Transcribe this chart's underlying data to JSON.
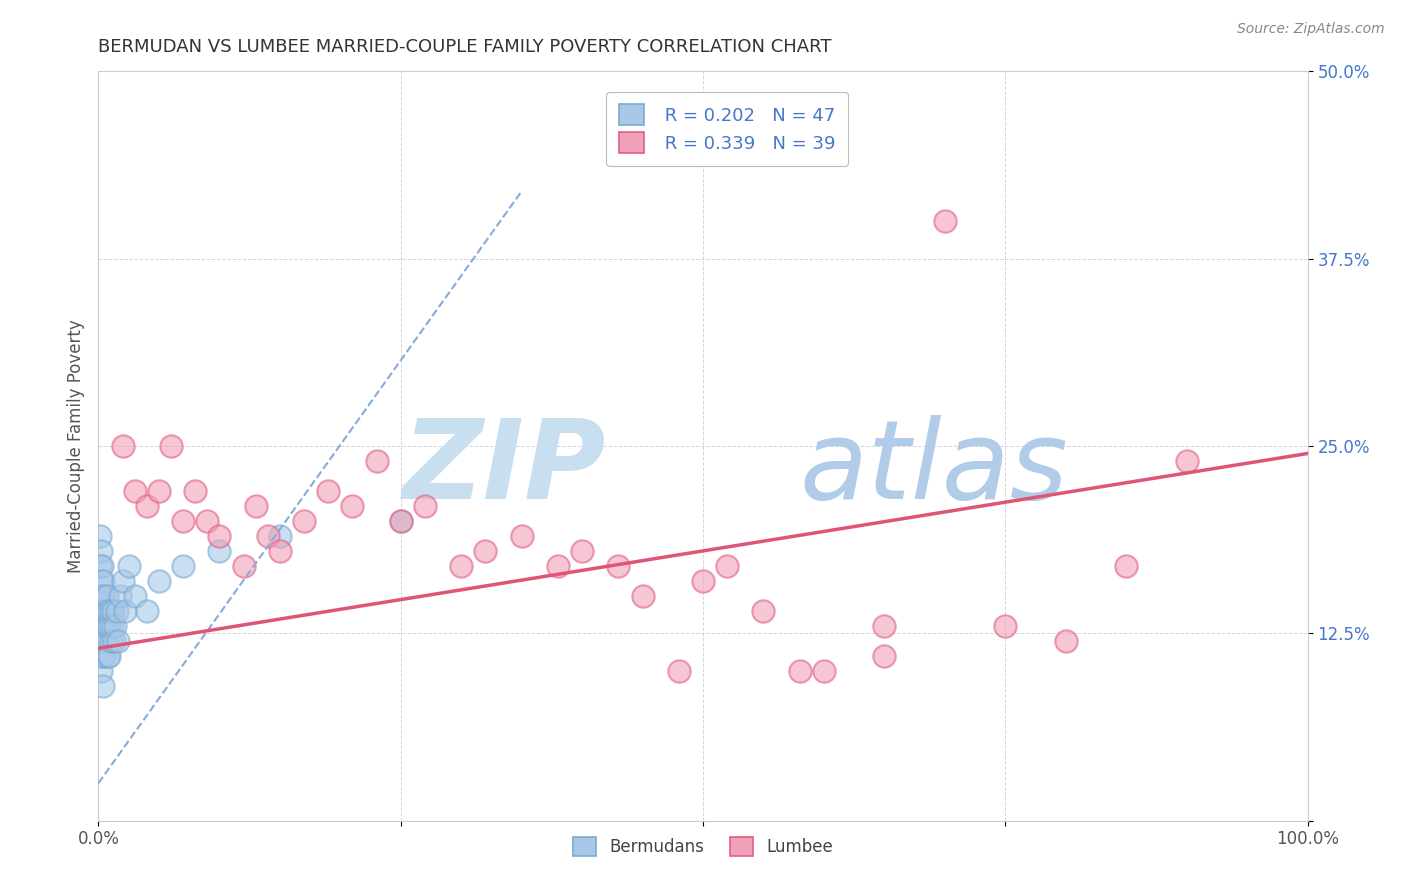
{
  "title": "BERMUDAN VS LUMBEE MARRIED-COUPLE FAMILY POVERTY CORRELATION CHART",
  "source": "Source: ZipAtlas.com",
  "ylabel": "Married-Couple Family Poverty",
  "xlim": [
    0,
    1.0
  ],
  "ylim": [
    0,
    0.5
  ],
  "bermuda_color": "#a8c8e8",
  "lumbee_color": "#f0a0b8",
  "bermuda_edge_color": "#7aaad0",
  "lumbee_edge_color": "#e06080",
  "bermuda_trend_color": "#88aadd",
  "lumbee_trend_color": "#e05575",
  "watermark_zip_color": "#c8dff0",
  "watermark_atlas_color": "#b0cce8",
  "legend_R_bermuda": "R = 0.202",
  "legend_N_bermuda": "N = 47",
  "legend_R_lumbee": "R = 0.339",
  "legend_N_lumbee": "N = 39",
  "legend_text_color": "#4477cc",
  "ytick_label_color": "#4477cc",
  "grid_color": "#cccccc",
  "bg_color": "#ffffff",
  "title_color": "#333333",
  "source_color": "#888888",
  "ylabel_color": "#555555",
  "bermuda_scatter_x": [
    0.001,
    0.001,
    0.001,
    0.001,
    0.002,
    0.002,
    0.002,
    0.002,
    0.002,
    0.003,
    0.003,
    0.003,
    0.003,
    0.004,
    0.004,
    0.004,
    0.004,
    0.005,
    0.005,
    0.005,
    0.006,
    0.006,
    0.007,
    0.007,
    0.008,
    0.008,
    0.009,
    0.009,
    0.01,
    0.01,
    0.011,
    0.012,
    0.013,
    0.014,
    0.015,
    0.016,
    0.018,
    0.02,
    0.022,
    0.025,
    0.03,
    0.04,
    0.05,
    0.07,
    0.1,
    0.15,
    0.25
  ],
  "bermuda_scatter_y": [
    0.19,
    0.17,
    0.15,
    0.12,
    0.18,
    0.16,
    0.14,
    0.12,
    0.1,
    0.17,
    0.15,
    0.13,
    0.11,
    0.16,
    0.14,
    0.12,
    0.09,
    0.15,
    0.13,
    0.11,
    0.14,
    0.12,
    0.15,
    0.13,
    0.14,
    0.11,
    0.13,
    0.11,
    0.14,
    0.12,
    0.13,
    0.14,
    0.12,
    0.13,
    0.14,
    0.12,
    0.15,
    0.16,
    0.14,
    0.17,
    0.15,
    0.14,
    0.16,
    0.17,
    0.18,
    0.19,
    0.2
  ],
  "lumbee_scatter_x": [
    0.02,
    0.03,
    0.04,
    0.05,
    0.06,
    0.07,
    0.08,
    0.09,
    0.1,
    0.12,
    0.13,
    0.14,
    0.15,
    0.17,
    0.19,
    0.21,
    0.23,
    0.25,
    0.27,
    0.3,
    0.32,
    0.35,
    0.38,
    0.4,
    0.43,
    0.45,
    0.48,
    0.5,
    0.52,
    0.55,
    0.58,
    0.6,
    0.65,
    0.7,
    0.75,
    0.8,
    0.85,
    0.9,
    0.65
  ],
  "lumbee_scatter_y": [
    0.25,
    0.22,
    0.21,
    0.22,
    0.25,
    0.2,
    0.22,
    0.2,
    0.19,
    0.17,
    0.21,
    0.19,
    0.18,
    0.2,
    0.22,
    0.21,
    0.24,
    0.2,
    0.21,
    0.17,
    0.18,
    0.19,
    0.17,
    0.18,
    0.17,
    0.15,
    0.1,
    0.16,
    0.17,
    0.14,
    0.1,
    0.1,
    0.11,
    0.4,
    0.13,
    0.12,
    0.17,
    0.24,
    0.13
  ],
  "bermuda_trend_x": [
    0.0,
    0.35
  ],
  "bermuda_trend_y": [
    0.025,
    0.42
  ],
  "lumbee_trend_x": [
    0.0,
    1.0
  ],
  "lumbee_trend_y": [
    0.115,
    0.245
  ]
}
